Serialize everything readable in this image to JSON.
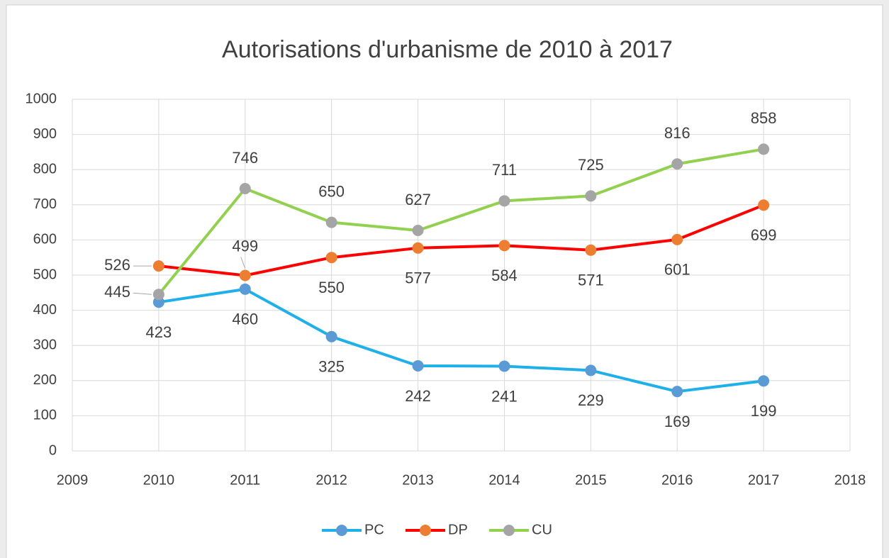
{
  "chart_data": {
    "type": "line",
    "title": "Autorisations d'urbanisme  de 2010 à 2017",
    "x": [
      2010,
      2011,
      2012,
      2013,
      2014,
      2015,
      2016,
      2017
    ],
    "series": [
      {
        "name": "PC",
        "color": "#1fb0ea",
        "marker_color": "#5b9bd5",
        "values": [
          423,
          460,
          325,
          242,
          241,
          229,
          169,
          199
        ]
      },
      {
        "name": "DP",
        "color": "#ff0000",
        "marker_color": "#ed7d31",
        "values": [
          526,
          499,
          550,
          577,
          584,
          571,
          601,
          699
        ]
      },
      {
        "name": "CU",
        "color": "#92d050",
        "marker_color": "#a5a5a5",
        "values": [
          445,
          746,
          650,
          627,
          711,
          725,
          816,
          858
        ]
      }
    ],
    "xlim": [
      2009,
      2018
    ],
    "xticks": [
      2009,
      2010,
      2011,
      2012,
      2013,
      2014,
      2015,
      2016,
      2017,
      2018
    ],
    "ylim": [
      0,
      1000
    ],
    "yticks": [
      0,
      100,
      200,
      300,
      400,
      500,
      600,
      700,
      800,
      900,
      1000
    ],
    "grid": true,
    "legend": "bottom"
  }
}
